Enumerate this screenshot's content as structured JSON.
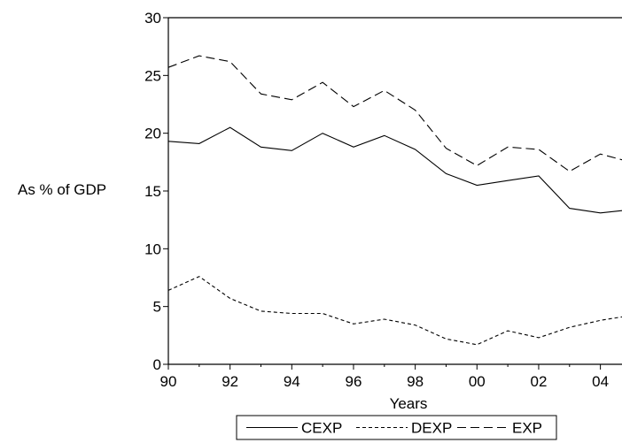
{
  "chart_data": {
    "type": "line",
    "xlabel": "Years",
    "ylabel": "As % of GDP",
    "xlim": [
      1990,
      2004.7
    ],
    "ylim": [
      0,
      30
    ],
    "x_ticks": [
      1990,
      1992,
      1994,
      1996,
      1998,
      2000,
      2002,
      2004
    ],
    "x_tick_labels": [
      "90",
      "92",
      "94",
      "96",
      "98",
      "00",
      "02",
      "04"
    ],
    "y_ticks": [
      0,
      5,
      10,
      15,
      20,
      25,
      30
    ],
    "y_tick_labels": [
      "0",
      "5",
      "10",
      "15",
      "20",
      "25",
      "30"
    ],
    "grid": false,
    "legend_position": "bottom-center",
    "x": [
      1990,
      1991,
      1992,
      1993,
      1994,
      1995,
      1996,
      1997,
      1998,
      1999,
      2000,
      2001,
      2002,
      2003,
      2004,
      2004.7
    ],
    "series": [
      {
        "name": "CEXP",
        "dash": "solid",
        "values": [
          19.3,
          19.1,
          20.5,
          18.8,
          18.5,
          20.0,
          18.8,
          19.8,
          18.6,
          16.5,
          15.5,
          15.9,
          16.3,
          13.5,
          13.1,
          13.3
        ]
      },
      {
        "name": "DEXP",
        "dash": "short",
        "values": [
          6.4,
          7.6,
          5.7,
          4.6,
          4.4,
          4.4,
          3.5,
          3.9,
          3.4,
          2.2,
          1.7,
          2.9,
          2.3,
          3.2,
          3.8,
          4.1
        ]
      },
      {
        "name": "EXP",
        "dash": "long",
        "values": [
          25.7,
          26.7,
          26.2,
          23.4,
          22.9,
          24.4,
          22.3,
          23.7,
          22.0,
          18.7,
          17.2,
          18.8,
          18.6,
          16.7,
          18.2,
          17.7
        ]
      }
    ]
  }
}
